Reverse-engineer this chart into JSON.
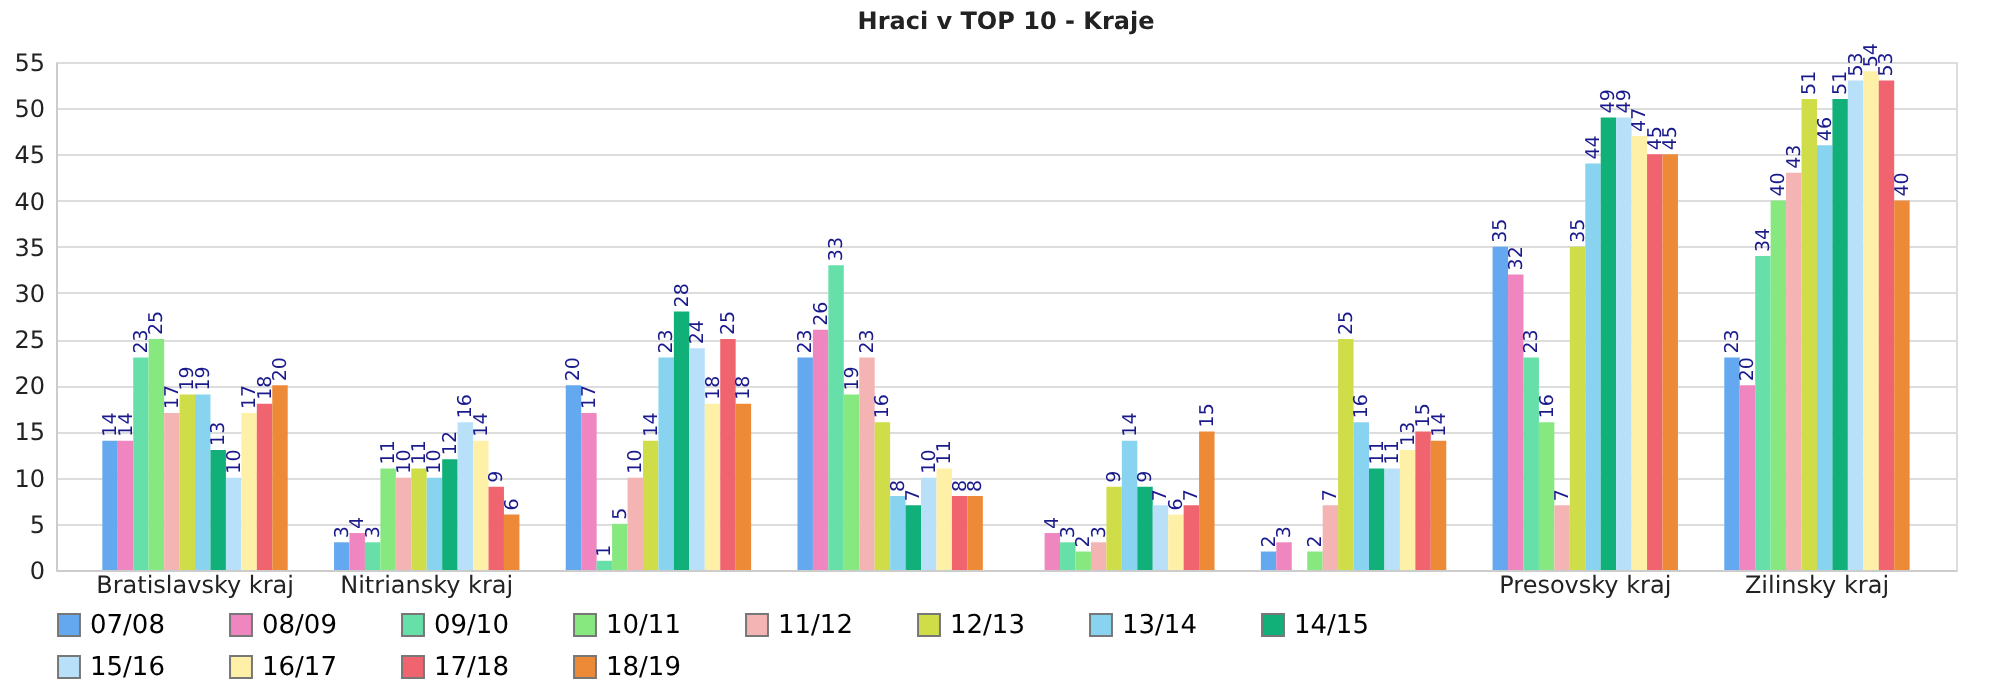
{
  "chart_data": {
    "type": "bar",
    "title": "Hraci v TOP 10 - Kraje",
    "categories": [
      "Bratislavsky kraj",
      "Nitriansky kraj",
      null,
      null,
      null,
      null,
      "Presovsky kraj",
      "Zilinsky kraj"
    ],
    "series": [
      {
        "name": "07/08",
        "color": "#64a8f0",
        "values": [
          14,
          3,
          20,
          23,
          null,
          2,
          35,
          23
        ]
      },
      {
        "name": "08/09",
        "color": "#f086c0",
        "values": [
          14,
          4,
          17,
          26,
          4,
          3,
          32,
          20
        ]
      },
      {
        "name": "09/10",
        "color": "#66e0a8",
        "values": [
          23,
          3,
          1,
          33,
          3,
          null,
          23,
          34
        ]
      },
      {
        "name": "10/11",
        "color": "#88e880",
        "values": [
          25,
          11,
          5,
          19,
          2,
          2,
          16,
          40
        ]
      },
      {
        "name": "11/12",
        "color": "#f4b4b4",
        "values": [
          17,
          10,
          10,
          23,
          3,
          7,
          7,
          43
        ]
      },
      {
        "name": "12/13",
        "color": "#cedd48",
        "values": [
          19,
          11,
          14,
          16,
          9,
          25,
          35,
          51
        ]
      },
      {
        "name": "13/14",
        "color": "#88d4f0",
        "values": [
          19,
          10,
          23,
          8,
          14,
          16,
          44,
          46
        ]
      },
      {
        "name": "14/15",
        "color": "#10b078",
        "values": [
          13,
          12,
          28,
          7,
          9,
          11,
          49,
          51
        ]
      },
      {
        "name": "15/16",
        "color": "#b8e0f8",
        "values": [
          10,
          16,
          24,
          10,
          7,
          11,
          49,
          53
        ]
      },
      {
        "name": "16/17",
        "color": "#fff0a8",
        "values": [
          17,
          14,
          18,
          11,
          6,
          13,
          47,
          54
        ]
      },
      {
        "name": "17/18",
        "color": "#f06470",
        "values": [
          18,
          9,
          25,
          8,
          7,
          15,
          45,
          53
        ]
      },
      {
        "name": "18/19",
        "color": "#ec8a38",
        "values": [
          20,
          6,
          18,
          8,
          15,
          14,
          45,
          40
        ]
      }
    ],
    "ylim": [
      0,
      55
    ],
    "yticks": [
      0,
      5,
      10,
      15,
      20,
      25,
      30,
      35,
      40,
      45,
      50,
      55
    ],
    "grid": "y",
    "legend": "bottom",
    "data_labels": true
  }
}
